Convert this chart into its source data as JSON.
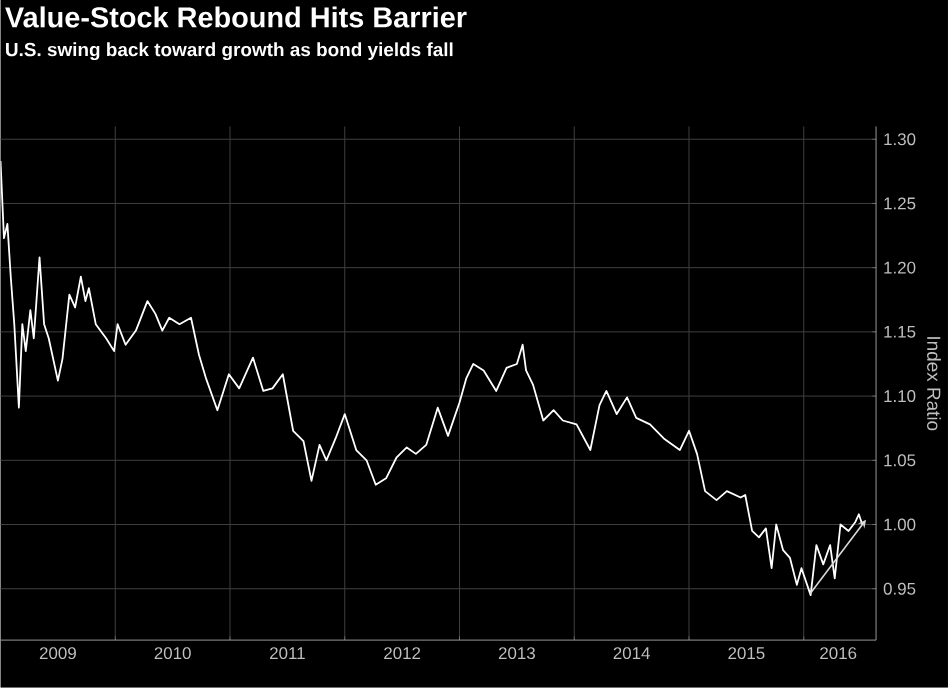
{
  "chart_data": {
    "type": "line",
    "title": "Value-Stock Rebound Hits Barrier",
    "subtitle": "U.S. swing back toward growth as bond yields fall",
    "ylabel": "Index Ratio",
    "xlim": [
      2009.0,
      2016.63
    ],
    "ylim": [
      0.91,
      1.31
    ],
    "xticks": [
      {
        "value": 2010,
        "label": null
      },
      {
        "value": 2011,
        "label": null
      },
      {
        "value": 2012,
        "label": null
      },
      {
        "value": 2013,
        "label": null
      },
      {
        "value": 2014,
        "label": null
      },
      {
        "value": 2015,
        "label": null
      },
      {
        "value": 2016,
        "label": null
      },
      {
        "value": 2009.5,
        "label": "2009"
      },
      {
        "value": 2010.5,
        "label": "2010"
      },
      {
        "value": 2011.5,
        "label": "2011"
      },
      {
        "value": 2012.5,
        "label": "2012"
      },
      {
        "value": 2013.5,
        "label": "2013"
      },
      {
        "value": 2014.5,
        "label": "2014"
      },
      {
        "value": 2015.5,
        "label": "2015"
      },
      {
        "value": 2016.3,
        "label": "2016"
      }
    ],
    "yticks": [
      {
        "value": 0.95,
        "label": "0.95"
      },
      {
        "value": 1.0,
        "label": "1.00"
      },
      {
        "value": 1.05,
        "label": "1.05"
      },
      {
        "value": 1.1,
        "label": "1.10"
      },
      {
        "value": 1.15,
        "label": "1.15"
      },
      {
        "value": 1.2,
        "label": "1.20"
      },
      {
        "value": 1.25,
        "label": "1.25"
      },
      {
        "value": 1.3,
        "label": "1.30"
      }
    ],
    "grid": true,
    "marker": "none",
    "line_style": "solid",
    "series": [
      {
        "color": "#ffffff",
        "x": [
          2009.0,
          2009.03,
          2009.06,
          2009.09,
          2009.12,
          2009.16,
          2009.19,
          2009.22,
          2009.26,
          2009.29,
          2009.34,
          2009.38,
          2009.42,
          2009.5,
          2009.54,
          2009.6,
          2009.65,
          2009.7,
          2009.74,
          2009.77,
          2009.83,
          2009.92,
          2009.99,
          2010.02,
          2010.09,
          2010.18,
          2010.28,
          2010.35,
          2010.41,
          2010.47,
          2010.56,
          2010.66,
          2010.73,
          2010.79,
          2010.89,
          2010.99,
          2011.08,
          2011.2,
          2011.29,
          2011.37,
          2011.46,
          2011.55,
          2011.64,
          2011.71,
          2011.78,
          2011.84,
          2011.92,
          2012.0,
          2012.1,
          2012.19,
          2012.27,
          2012.36,
          2012.45,
          2012.54,
          2012.62,
          2012.71,
          2012.81,
          2012.9,
          2013.0,
          2013.06,
          2013.12,
          2013.21,
          2013.32,
          2013.41,
          2013.5,
          2013.55,
          2013.58,
          2013.64,
          2013.73,
          2013.82,
          2013.9,
          2014.02,
          2014.14,
          2014.22,
          2014.28,
          2014.37,
          2014.46,
          2014.54,
          2014.66,
          2014.78,
          2014.92,
          2015.0,
          2015.07,
          2015.14,
          2015.24,
          2015.33,
          2015.45,
          2015.49,
          2015.55,
          2015.61,
          2015.67,
          2015.72,
          2015.76,
          2015.82,
          2015.88,
          2015.94,
          2015.98,
          2016.06,
          2016.11,
          2016.17,
          2016.23,
          2016.27,
          2016.32,
          2016.39,
          2016.45,
          2016.48,
          2016.51
        ],
        "values": [
          1.283,
          1.223,
          1.234,
          1.192,
          1.156,
          1.091,
          1.156,
          1.135,
          1.167,
          1.145,
          1.208,
          1.156,
          1.145,
          1.112,
          1.129,
          1.179,
          1.169,
          1.193,
          1.174,
          1.184,
          1.156,
          1.145,
          1.135,
          1.156,
          1.14,
          1.151,
          1.174,
          1.164,
          1.151,
          1.161,
          1.156,
          1.161,
          1.132,
          1.114,
          1.089,
          1.117,
          1.106,
          1.13,
          1.104,
          1.106,
          1.117,
          1.073,
          1.065,
          1.034,
          1.062,
          1.05,
          1.067,
          1.086,
          1.058,
          1.05,
          1.031,
          1.036,
          1.052,
          1.06,
          1.055,
          1.062,
          1.091,
          1.069,
          1.095,
          1.114,
          1.125,
          1.12,
          1.104,
          1.122,
          1.125,
          1.14,
          1.12,
          1.109,
          1.081,
          1.089,
          1.081,
          1.078,
          1.058,
          1.093,
          1.104,
          1.086,
          1.099,
          1.083,
          1.078,
          1.067,
          1.058,
          1.073,
          1.055,
          1.026,
          1.019,
          1.026,
          1.021,
          1.023,
          0.995,
          0.99,
          0.997,
          0.966,
          1.0,
          0.98,
          0.974,
          0.953,
          0.966,
          0.945,
          0.984,
          0.969,
          0.984,
          0.958,
          1.0,
          0.995,
          1.002,
          1.008,
          1.0
        ]
      }
    ]
  }
}
